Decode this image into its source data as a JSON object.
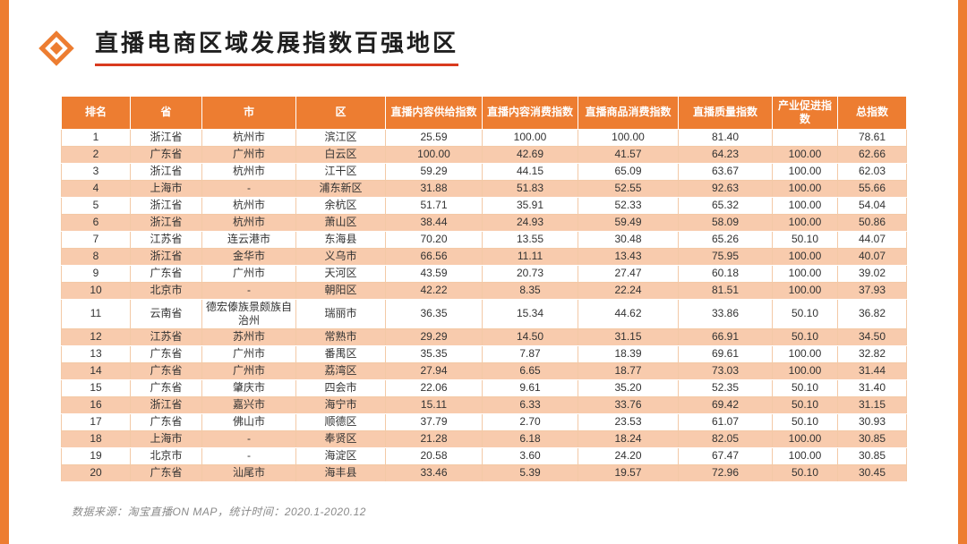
{
  "page": {
    "title": "直播电商区域发展指数百强地区",
    "footer": "数据来源：淘宝直播ON MAP，统计时间：2020.1-2020.12",
    "accent_color": "#ED7D31",
    "band_color": "#F8CBAD",
    "underline_color": "#D93A1E"
  },
  "table": {
    "headers": [
      "排名",
      "省",
      "市",
      "区",
      "直播内容供给指数",
      "直播内容消费指数",
      "直播商品消费指数",
      "直播质量指数",
      "产业促进指数",
      "总指数"
    ],
    "rows": [
      [
        "1",
        "浙江省",
        "杭州市",
        "滨江区",
        "25.59",
        "100.00",
        "100.00",
        "81.40",
        "",
        "78.61"
      ],
      [
        "2",
        "广东省",
        "广州市",
        "白云区",
        "100.00",
        "42.69",
        "41.57",
        "64.23",
        "100.00",
        "62.66"
      ],
      [
        "3",
        "浙江省",
        "杭州市",
        "江干区",
        "59.29",
        "44.15",
        "65.09",
        "63.67",
        "100.00",
        "62.03"
      ],
      [
        "4",
        "上海市",
        "-",
        "浦东新区",
        "31.88",
        "51.83",
        "52.55",
        "92.63",
        "100.00",
        "55.66"
      ],
      [
        "5",
        "浙江省",
        "杭州市",
        "余杭区",
        "51.71",
        "35.91",
        "52.33",
        "65.32",
        "100.00",
        "54.04"
      ],
      [
        "6",
        "浙江省",
        "杭州市",
        "萧山区",
        "38.44",
        "24.93",
        "59.49",
        "58.09",
        "100.00",
        "50.86"
      ],
      [
        "7",
        "江苏省",
        "连云港市",
        "东海县",
        "70.20",
        "13.55",
        "30.48",
        "65.26",
        "50.10",
        "44.07"
      ],
      [
        "8",
        "浙江省",
        "金华市",
        "义乌市",
        "66.56",
        "11.11",
        "13.43",
        "75.95",
        "100.00",
        "40.07"
      ],
      [
        "9",
        "广东省",
        "广州市",
        "天河区",
        "43.59",
        "20.73",
        "27.47",
        "60.18",
        "100.00",
        "39.02"
      ],
      [
        "10",
        "北京市",
        "-",
        "朝阳区",
        "42.22",
        "8.35",
        "22.24",
        "81.51",
        "100.00",
        "37.93"
      ],
      [
        "11",
        "云南省",
        "德宏傣族景颇族自治州",
        "瑞丽市",
        "36.35",
        "15.34",
        "44.62",
        "33.86",
        "50.10",
        "36.82"
      ],
      [
        "12",
        "江苏省",
        "苏州市",
        "常熟市",
        "29.29",
        "14.50",
        "31.15",
        "66.91",
        "50.10",
        "34.50"
      ],
      [
        "13",
        "广东省",
        "广州市",
        "番禺区",
        "35.35",
        "7.87",
        "18.39",
        "69.61",
        "100.00",
        "32.82"
      ],
      [
        "14",
        "广东省",
        "广州市",
        "荔湾区",
        "27.94",
        "6.65",
        "18.77",
        "73.03",
        "100.00",
        "31.44"
      ],
      [
        "15",
        "广东省",
        "肇庆市",
        "四会市",
        "22.06",
        "9.61",
        "35.20",
        "52.35",
        "50.10",
        "31.40"
      ],
      [
        "16",
        "浙江省",
        "嘉兴市",
        "海宁市",
        "15.11",
        "6.33",
        "33.76",
        "69.42",
        "50.10",
        "31.15"
      ],
      [
        "17",
        "广东省",
        "佛山市",
        "顺德区",
        "37.79",
        "2.70",
        "23.53",
        "61.07",
        "50.10",
        "30.93"
      ],
      [
        "18",
        "上海市",
        "-",
        "奉贤区",
        "21.28",
        "6.18",
        "18.24",
        "82.05",
        "100.00",
        "30.85"
      ],
      [
        "19",
        "北京市",
        "-",
        "海淀区",
        "20.58",
        "3.60",
        "24.20",
        "67.47",
        "100.00",
        "30.85"
      ],
      [
        "20",
        "广东省",
        "汕尾市",
        "海丰县",
        "33.46",
        "5.39",
        "19.57",
        "72.96",
        "50.10",
        "30.45"
      ]
    ]
  }
}
